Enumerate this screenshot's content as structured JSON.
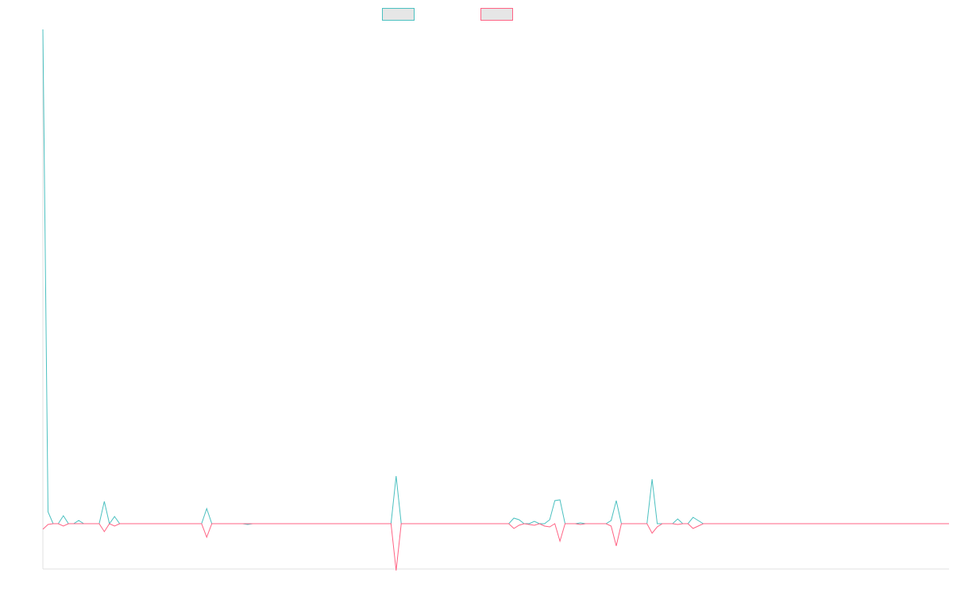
{
  "chart_data": {
    "type": "line",
    "ylim": [
      -57,
      622
    ],
    "legend": "top",
    "series": [
      {
        "color": "#4bc0c0",
        "values": [
          622,
          15,
          0,
          0,
          10,
          0,
          0,
          4,
          0,
          0,
          0,
          0,
          28,
          0,
          9,
          0,
          0,
          0,
          0,
          0,
          0,
          0,
          0,
          0,
          0,
          0,
          0,
          0,
          0,
          0,
          0,
          0,
          19,
          0,
          0,
          0,
          0,
          0,
          0,
          0,
          -1,
          0,
          0,
          0,
          0,
          0,
          0,
          0,
          0,
          0,
          0,
          0,
          0,
          0,
          0,
          0,
          0,
          0,
          0,
          0,
          0,
          0,
          0,
          0,
          0,
          0,
          0,
          0,
          0,
          60,
          0,
          0,
          0,
          0,
          0,
          0,
          0,
          0,
          0,
          0,
          0,
          0,
          0,
          0,
          0,
          0,
          0,
          0,
          0,
          0,
          0,
          0,
          7,
          5,
          0,
          0,
          3,
          0,
          0,
          5,
          29,
          30,
          0,
          0,
          0,
          1,
          0,
          0,
          0,
          0,
          0,
          4,
          29,
          0,
          0,
          0,
          0,
          0,
          0,
          56,
          0,
          0,
          0,
          0,
          6,
          0,
          0,
          8,
          4,
          0,
          0,
          0,
          0,
          0,
          0,
          0,
          0,
          0,
          0,
          0,
          0,
          0,
          0,
          0,
          0,
          0,
          0,
          0,
          0,
          0,
          0,
          0,
          0,
          0,
          0,
          0,
          0,
          0,
          0,
          0,
          0,
          0,
          0,
          0,
          0,
          0,
          0,
          0,
          0,
          0,
          0,
          0,
          0,
          0,
          0,
          0,
          0,
          0
        ]
      },
      {
        "color": "#ff6384",
        "values": [
          -7,
          -1,
          0,
          0,
          -3,
          0,
          0,
          0,
          0,
          0,
          0,
          0,
          -10,
          0,
          -3,
          0,
          0,
          0,
          0,
          0,
          0,
          0,
          0,
          0,
          0,
          0,
          0,
          0,
          0,
          0,
          0,
          0,
          -17,
          0,
          0,
          0,
          0,
          0,
          0,
          0,
          0,
          0,
          0,
          0,
          0,
          0,
          0,
          0,
          0,
          0,
          0,
          0,
          0,
          0,
          0,
          0,
          0,
          0,
          0,
          0,
          0,
          0,
          0,
          0,
          0,
          0,
          0,
          0,
          0,
          -59,
          0,
          0,
          0,
          0,
          0,
          0,
          0,
          0,
          0,
          0,
          0,
          0,
          0,
          0,
          0,
          0,
          0,
          0,
          0,
          0,
          0,
          0,
          -6,
          -2,
          0,
          -1,
          -2,
          0,
          -3,
          -4,
          0,
          -22,
          0,
          0,
          0,
          -1,
          0,
          0,
          0,
          0,
          0,
          -3,
          -28,
          0,
          0,
          0,
          0,
          0,
          0,
          -12,
          -4,
          0,
          0,
          0,
          -1,
          0,
          0,
          -6,
          -3,
          0,
          0,
          0,
          0,
          0,
          0,
          0,
          0,
          0,
          0,
          0,
          0,
          0,
          0,
          0,
          0,
          0,
          0,
          0,
          0,
          0,
          0,
          0,
          0,
          0,
          0,
          0,
          0,
          0,
          0,
          0,
          0,
          0,
          0,
          0,
          0,
          0,
          0,
          0,
          0,
          0,
          0,
          0,
          0,
          0,
          0,
          0,
          0,
          0
        ]
      }
    ]
  }
}
